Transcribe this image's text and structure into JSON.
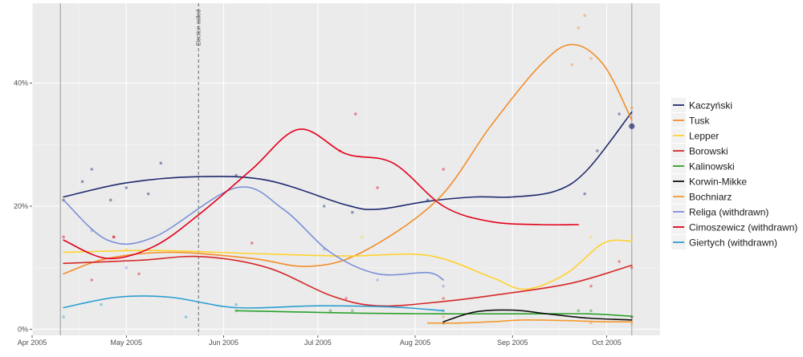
{
  "chart_data": {
    "type": "line",
    "title": "",
    "xlabel": "",
    "ylabel": "",
    "x_range": [
      "2005-04-01",
      "2005-10-18"
    ],
    "ylim": [
      -1,
      53
    ],
    "x_ticks": [
      {
        "label": "Apr 2005",
        "date": "2005-04-01"
      },
      {
        "label": "May 2005",
        "date": "2005-05-01"
      },
      {
        "label": "Jun 2005",
        "date": "2005-06-01"
      },
      {
        "label": "Jul 2005",
        "date": "2005-07-01"
      },
      {
        "label": "Aug 2005",
        "date": "2005-08-01"
      },
      {
        "label": "Sep 2005",
        "date": "2005-09-01"
      },
      {
        "label": "Oct 2005",
        "date": "2005-10-01"
      }
    ],
    "y_ticks": [
      {
        "label": "0%",
        "value": 0
      },
      {
        "label": "20%",
        "value": 20
      },
      {
        "label": "40%",
        "value": 40
      }
    ],
    "vlines": [
      {
        "date": "2005-04-10",
        "style": "solid",
        "label": ""
      },
      {
        "date": "2005-05-24",
        "style": "dashed",
        "label": "Election called"
      },
      {
        "date": "2005-10-09",
        "style": "solid",
        "label": ""
      }
    ],
    "series": [
      {
        "name": "Kaczyński",
        "color": "#1f2a6e",
        "x": [
          "2005-04-11",
          "2005-05-01",
          "2005-05-24",
          "2005-06-15",
          "2005-07-10",
          "2005-07-20",
          "2005-08-05",
          "2005-08-20",
          "2005-09-01",
          "2005-09-15",
          "2005-09-25",
          "2005-10-09"
        ],
        "y": [
          21.5,
          23.8,
          24.8,
          24.2,
          20.2,
          19.5,
          20.8,
          21.5,
          21.5,
          22.5,
          26.0,
          35.3
        ],
        "points_x": [
          "2005-04-11",
          "2005-04-17",
          "2005-04-20",
          "2005-04-26",
          "2005-05-01",
          "2005-05-08",
          "2005-05-12",
          "2005-06-05",
          "2005-07-03",
          "2005-07-12",
          "2005-08-05",
          "2005-09-24",
          "2005-09-28",
          "2005-10-05",
          "2005-10-09"
        ],
        "points_y": [
          21,
          24,
          26,
          21,
          23,
          22,
          27,
          25,
          20,
          19,
          21,
          22,
          29,
          35,
          33
        ]
      },
      {
        "name": "Tusk",
        "color": "#f28e2b",
        "x": [
          "2005-04-11",
          "2005-04-25",
          "2005-05-15",
          "2005-06-10",
          "2005-06-28",
          "2005-07-15",
          "2005-08-08",
          "2005-08-25",
          "2005-09-10",
          "2005-09-20",
          "2005-09-30",
          "2005-10-09"
        ],
        "y": [
          9.0,
          11.5,
          12.5,
          11.5,
          10.2,
          12.5,
          21.0,
          33.0,
          43.0,
          46.3,
          43.0,
          34.0
        ],
        "points_x": [
          "2005-09-20",
          "2005-09-22",
          "2005-09-24",
          "2005-09-26",
          "2005-10-09"
        ],
        "points_y": [
          43,
          49,
          51,
          44,
          36
        ]
      },
      {
        "name": "Lepper",
        "color": "#ffd22e",
        "x": [
          "2005-04-11",
          "2005-05-10",
          "2005-06-10",
          "2005-07-10",
          "2005-08-05",
          "2005-08-25",
          "2005-09-05",
          "2005-09-18",
          "2005-09-30",
          "2005-10-09"
        ],
        "y": [
          12.5,
          12.8,
          12.3,
          11.9,
          12.0,
          8.5,
          6.5,
          9.0,
          14.0,
          14.3
        ],
        "points_x": [
          "2005-05-01",
          "2005-07-15",
          "2005-09-26",
          "2005-10-09"
        ],
        "points_y": [
          13,
          15,
          15,
          15
        ]
      },
      {
        "name": "Borowski",
        "color": "#d62728",
        "x": [
          "2005-04-11",
          "2005-05-05",
          "2005-05-25",
          "2005-06-15",
          "2005-07-05",
          "2005-07-20",
          "2005-08-10",
          "2005-08-30",
          "2005-09-20",
          "2005-10-09"
        ],
        "y": [
          10.7,
          11.2,
          11.8,
          10.0,
          5.5,
          3.8,
          4.5,
          5.8,
          7.5,
          10.4
        ],
        "points_x": [
          "2005-04-20",
          "2005-04-27",
          "2005-05-05",
          "2005-07-10",
          "2005-08-10",
          "2005-09-26",
          "2005-10-05",
          "2005-10-09"
        ],
        "points_y": [
          8,
          15,
          9,
          5,
          5,
          7,
          11,
          10
        ]
      },
      {
        "name": "Kalinowski",
        "color": "#2ca02c",
        "x": [
          "2005-06-05",
          "2005-06-25",
          "2005-07-15",
          "2005-08-10",
          "2005-09-05",
          "2005-09-25",
          "2005-10-09"
        ],
        "y": [
          3.0,
          2.8,
          2.6,
          2.5,
          2.5,
          2.5,
          2.1
        ],
        "points_x": [
          "2005-06-05",
          "2005-07-05",
          "2005-07-12",
          "2005-09-22",
          "2005-09-26"
        ],
        "points_y": [
          3,
          3,
          3,
          3,
          3
        ]
      },
      {
        "name": "Korwin-Mikke",
        "color": "#111111",
        "x": [
          "2005-08-10",
          "2005-08-20",
          "2005-09-01",
          "2005-09-12",
          "2005-09-25",
          "2005-10-09"
        ],
        "y": [
          1.2,
          2.8,
          3.1,
          2.5,
          1.8,
          1.5
        ],
        "points_x": [
          "2005-08-10",
          "2005-10-09"
        ],
        "points_y": [
          1,
          2
        ]
      },
      {
        "name": "Bochniarz",
        "color": "#f59a2d",
        "x": [
          "2005-08-05",
          "2005-08-15",
          "2005-08-25",
          "2005-09-05",
          "2005-09-18",
          "2005-09-30",
          "2005-10-09"
        ],
        "y": [
          1.0,
          1.0,
          1.2,
          1.5,
          1.4,
          1.2,
          1.2
        ],
        "points_x": [
          "2005-08-10",
          "2005-09-26",
          "2005-10-09"
        ],
        "points_y": [
          2,
          1,
          1
        ]
      },
      {
        "name": "Religa (withdrawn)",
        "color": "#7b8fd6",
        "x": [
          "2005-04-11",
          "2005-04-25",
          "2005-05-10",
          "2005-06-05",
          "2005-06-20",
          "2005-07-05",
          "2005-07-20",
          "2005-08-05",
          "2005-08-10"
        ],
        "y": [
          21.0,
          14.5,
          15.0,
          23.0,
          19.5,
          12.5,
          9.0,
          9.2,
          8.0
        ],
        "points_x": [
          "2005-04-20",
          "2005-05-01",
          "2005-07-03",
          "2005-07-20",
          "2005-08-10"
        ],
        "points_y": [
          16,
          10,
          13,
          8,
          7
        ]
      },
      {
        "name": "Cimoszewicz (withdrawn)",
        "color": "#e3001b",
        "x": [
          "2005-04-11",
          "2005-04-25",
          "2005-05-10",
          "2005-05-25",
          "2005-06-10",
          "2005-06-25",
          "2005-07-10",
          "2005-07-25",
          "2005-08-10",
          "2005-08-25",
          "2005-09-10",
          "2005-09-22"
        ],
        "y": [
          14.5,
          11.5,
          13.5,
          19.0,
          26.0,
          32.5,
          28.5,
          27.0,
          20.0,
          17.5,
          17.0,
          17.0
        ],
        "points_x": [
          "2005-04-11",
          "2005-04-27",
          "2005-06-10",
          "2005-07-08",
          "2005-07-13",
          "2005-07-20",
          "2005-08-10"
        ],
        "points_y": [
          15,
          15,
          14,
          29,
          35,
          23,
          26
        ]
      },
      {
        "name": "Giertych (withdrawn)",
        "color": "#2b9ed1",
        "x": [
          "2005-04-11",
          "2005-04-28",
          "2005-05-15",
          "2005-06-05",
          "2005-07-01",
          "2005-07-25",
          "2005-08-10"
        ],
        "y": [
          3.5,
          5.2,
          5.2,
          3.5,
          3.8,
          3.6,
          3.0
        ],
        "points_x": [
          "2005-04-11",
          "2005-04-23",
          "2005-05-20",
          "2005-06-05",
          "2005-08-10"
        ],
        "points_y": [
          2,
          4,
          2,
          4,
          3
        ]
      }
    ]
  }
}
